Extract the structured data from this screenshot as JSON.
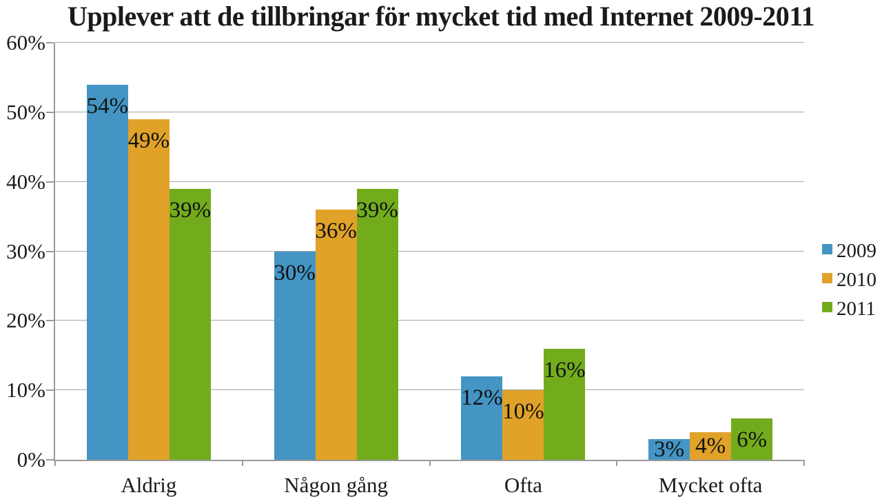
{
  "title": "Upplever att de tillbringar för mycket tid med Internet 2009-2011",
  "colors": {
    "background": "#FFFFFF",
    "text": "#1A1A1A",
    "gridline": "#A6A6A6",
    "axis": "#9A9A9A",
    "series_2009": "#4495C4",
    "series_2010": "#E0A228",
    "series_2011": "#72AC1D"
  },
  "chart_data": {
    "type": "bar",
    "title": "Upplever att de tillbringar för mycket tid med Internet 2009-2011",
    "categories": [
      "Aldrig",
      "Någon gång",
      "Ofta",
      "Mycket ofta"
    ],
    "series": [
      {
        "name": "2009",
        "color": "#4495C4",
        "values": [
          54,
          30,
          12,
          3
        ]
      },
      {
        "name": "2010",
        "color": "#E0A228",
        "values": [
          49,
          36,
          10,
          4
        ]
      },
      {
        "name": "2011",
        "color": "#72AC1D",
        "values": [
          39,
          39,
          16,
          6
        ]
      }
    ],
    "data_labels": [
      [
        "54%",
        "30%",
        "12%",
        "3%"
      ],
      [
        "49%",
        "36%",
        "10%",
        "4%"
      ],
      [
        "39%",
        "39%",
        "16%",
        "6%"
      ]
    ],
    "xlabel": "",
    "ylabel": "",
    "ylim": [
      0,
      60
    ],
    "yticks": [
      0,
      10,
      20,
      30,
      40,
      50,
      60
    ],
    "ytick_labels": [
      "0%",
      "10%",
      "20%",
      "30%",
      "40%",
      "50%",
      "60%"
    ],
    "grid": true,
    "legend_position": "right",
    "legend_entries": [
      "2009",
      "2010",
      "2011"
    ]
  }
}
